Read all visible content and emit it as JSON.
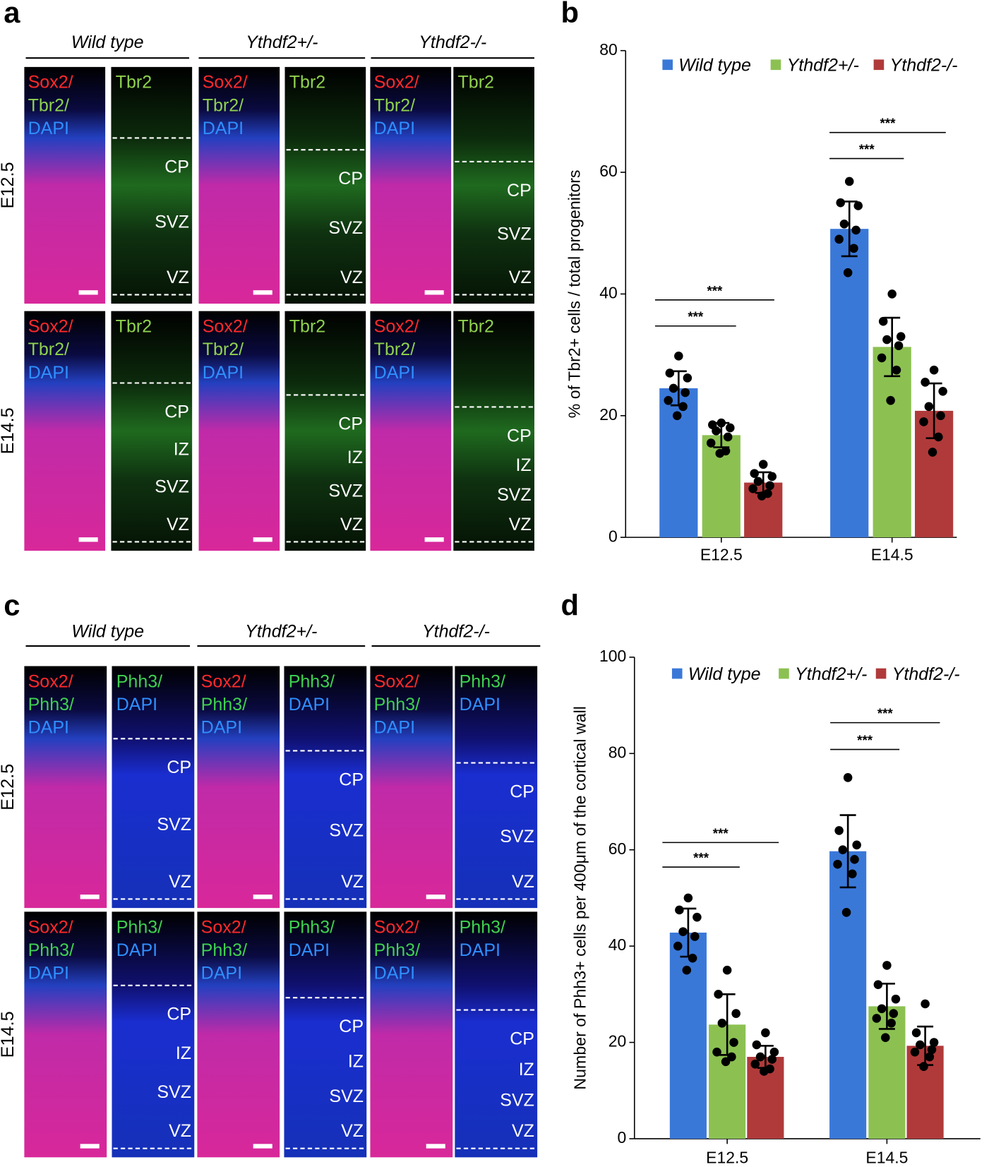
{
  "image_panels": [
    {
      "label": "a",
      "headers": [
        "Wild type",
        "Ythdf2+/-",
        "Ythdf2-/-"
      ],
      "rows": [
        "E12.5",
        "E14.5"
      ],
      "merge_stains": [
        {
          "text": "Sox2/",
          "color": "#ff2a2a"
        },
        {
          "text": "Tbr2/",
          "color": "#8fd14f"
        },
        {
          "text": "DAPI",
          "color": "#2f8fff"
        }
      ],
      "single_stains": [
        {
          "text": "Tbr2",
          "color": "#8fd14f"
        }
      ],
      "zones": [
        [
          [
            "CP",
            "SVZ",
            "VZ"
          ],
          [
            "CP",
            "SVZ",
            "VZ"
          ],
          [
            "CP",
            "SVZ",
            "VZ"
          ]
        ],
        [
          [
            "CP",
            "IZ",
            "SVZ",
            "VZ"
          ],
          [
            "CP",
            "IZ",
            "SVZ",
            "VZ"
          ],
          [
            "CP",
            "IZ",
            "SVZ",
            "VZ"
          ]
        ]
      ]
    },
    {
      "label": "c",
      "headers": [
        "Wild type",
        "Ythdf2+/-",
        "Ythdf2-/-"
      ],
      "rows": [
        "E12.5",
        "E14.5"
      ],
      "merge_stains": [
        {
          "text": "Sox2/",
          "color": "#ff2a2a"
        },
        {
          "text": "Phh3/",
          "color": "#3fd14f"
        },
        {
          "text": "DAPI",
          "color": "#2f8fff"
        }
      ],
      "single_stains": [
        {
          "text": "Phh3/",
          "color": "#3fd14f"
        },
        {
          "text": "DAPI",
          "color": "#2f8fff"
        }
      ],
      "zones": [
        [
          [
            "CP",
            "SVZ",
            "VZ"
          ],
          [
            "CP",
            "SVZ",
            "VZ"
          ],
          [
            "CP",
            "SVZ",
            "VZ"
          ]
        ],
        [
          [
            "CP",
            "IZ",
            "SVZ",
            "VZ"
          ],
          [
            "CP",
            "IZ",
            "SVZ",
            "VZ"
          ],
          [
            "CP",
            "IZ",
            "SVZ",
            "VZ"
          ]
        ]
      ]
    }
  ],
  "chart_data": [
    {
      "type": "bar",
      "panel": "b",
      "ylabel": "% of Tbr2+ cells / total progenitors",
      "categories": [
        "E12.5",
        "E14.5"
      ],
      "series": [
        {
          "name": "Wild type",
          "color": "#3a78d8",
          "values": [
            24.5,
            50.7
          ],
          "errors": [
            2.8,
            4.5
          ],
          "points": [
            [
              29.8,
              27.0,
              26.2,
              24.5,
              23.8,
              22.5,
              21.5,
              20.0
            ],
            [
              58.5,
              55.0,
              54.5,
              51.5,
              50.5,
              49.0,
              47.5,
              43.5
            ]
          ]
        },
        {
          "name": "Ythdf2+/-",
          "color": "#8cc152",
          "values": [
            16.8,
            31.3
          ],
          "errors": [
            2.0,
            4.8
          ],
          "points": [
            [
              18.8,
              18.5,
              18.0,
              17.5,
              16.5,
              15.5,
              14.2,
              13.8
            ],
            [
              40.0,
              35.5,
              33.0,
              32.5,
              31.5,
              29.5,
              27.5,
              22.5
            ]
          ]
        },
        {
          "name": "Ythdf2-/-",
          "color": "#b03a3a",
          "values": [
            9.0,
            20.8
          ],
          "errors": [
            1.7,
            4.5
          ],
          "points": [
            [
              12.0,
              10.5,
              10.0,
              9.2,
              8.5,
              8.0,
              7.2,
              6.8
            ],
            [
              27.5,
              25.5,
              24.0,
              21.5,
              20.0,
              19.0,
              16.5,
              14.0
            ]
          ]
        }
      ],
      "significance": [
        [
          "***",
          "***"
        ],
        [
          "***",
          "***"
        ]
      ],
      "ylim": [
        0,
        80
      ],
      "yticks": [
        0,
        20,
        40,
        60,
        80
      ]
    },
    {
      "type": "bar",
      "panel": "d",
      "ylabel": "Number of Phh3+ cells per 400μm of the cortical wall",
      "categories": [
        "E12.5",
        "E14.5"
      ],
      "series": [
        {
          "name": "Wild type",
          "color": "#3a78d8",
          "values": [
            42.8,
            59.7
          ],
          "errors": [
            5.0,
            7.5
          ],
          "points": [
            [
              50.0,
              47.5,
              46.0,
              43.0,
              42.0,
              40.0,
              37.5,
              35.0
            ],
            [
              75.0,
              64.0,
              61.0,
              60.0,
              58.0,
              57.0,
              55.0,
              47.0
            ]
          ]
        },
        {
          "name": "Ythdf2+/-",
          "color": "#8cc152",
          "values": [
            23.7,
            27.5
          ],
          "errors": [
            6.3,
            4.7
          ],
          "points": [
            [
              35.0,
              30.0,
              26.0,
              24.0,
              20.0,
              18.0,
              17.0,
              16.0
            ],
            [
              36.0,
              32.0,
              29.0,
              27.0,
              26.0,
              25.0,
              24.0,
              21.0
            ]
          ]
        },
        {
          "name": "Ythdf2-/-",
          "color": "#b03a3a",
          "values": [
            17.0,
            19.3
          ],
          "errors": [
            2.3,
            4.0
          ],
          "points": [
            [
              22.0,
              19.5,
              18.0,
              17.0,
              16.5,
              15.5,
              14.5,
              14.0
            ],
            [
              28.0,
              22.0,
              20.0,
              19.5,
              18.5,
              18.0,
              17.0,
              15.0
            ]
          ]
        }
      ],
      "significance": [
        [
          "***",
          "***"
        ],
        [
          "***",
          "***"
        ]
      ],
      "ylim": [
        0,
        100
      ],
      "yticks": [
        0,
        20,
        40,
        60,
        80,
        100
      ]
    }
  ]
}
